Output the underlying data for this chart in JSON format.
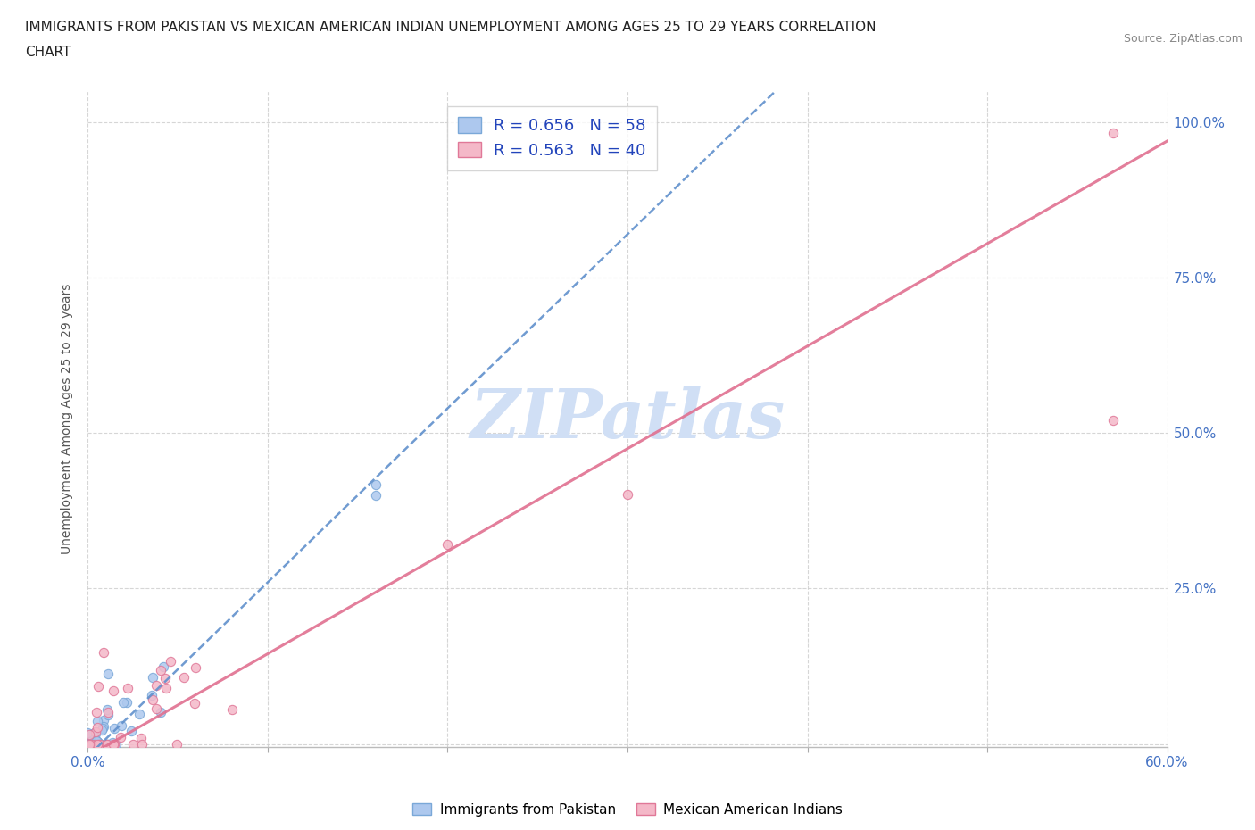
{
  "title_line1": "IMMIGRANTS FROM PAKISTAN VS MEXICAN AMERICAN INDIAN UNEMPLOYMENT AMONG AGES 25 TO 29 YEARS CORRELATION",
  "title_line2": "CHART",
  "source": "Source: ZipAtlas.com",
  "ylabel": "Unemployment Among Ages 25 to 29 years",
  "xlim": [
    0.0,
    0.6
  ],
  "ylim": [
    -0.005,
    1.05
  ],
  "xticks": [
    0.0,
    0.1,
    0.2,
    0.3,
    0.4,
    0.5,
    0.6
  ],
  "xticklabels": [
    "0.0%",
    "",
    "",
    "",
    "",
    "",
    "60.0%"
  ],
  "yticks": [
    0.0,
    0.25,
    0.5,
    0.75,
    1.0
  ],
  "yticklabels_right": [
    "",
    "25.0%",
    "50.0%",
    "75.0%",
    "100.0%"
  ],
  "pakistan_color": "#adc8ee",
  "pakistan_color_edge": "#7aa8d8",
  "mexican_color": "#f4b8c8",
  "mexican_color_edge": "#e07898",
  "pakistan_R": 0.656,
  "pakistan_N": 58,
  "mexican_R": 0.563,
  "mexican_N": 40,
  "pak_line_color": "#6090cc",
  "mex_line_color": "#e07090",
  "watermark_color": "#d0dff5",
  "grid_color": "#cccccc",
  "background_color": "#ffffff",
  "pak_line_intercept": -0.02,
  "pak_line_slope": 2.8,
  "mex_line_intercept": -0.02,
  "mex_line_slope": 1.65
}
